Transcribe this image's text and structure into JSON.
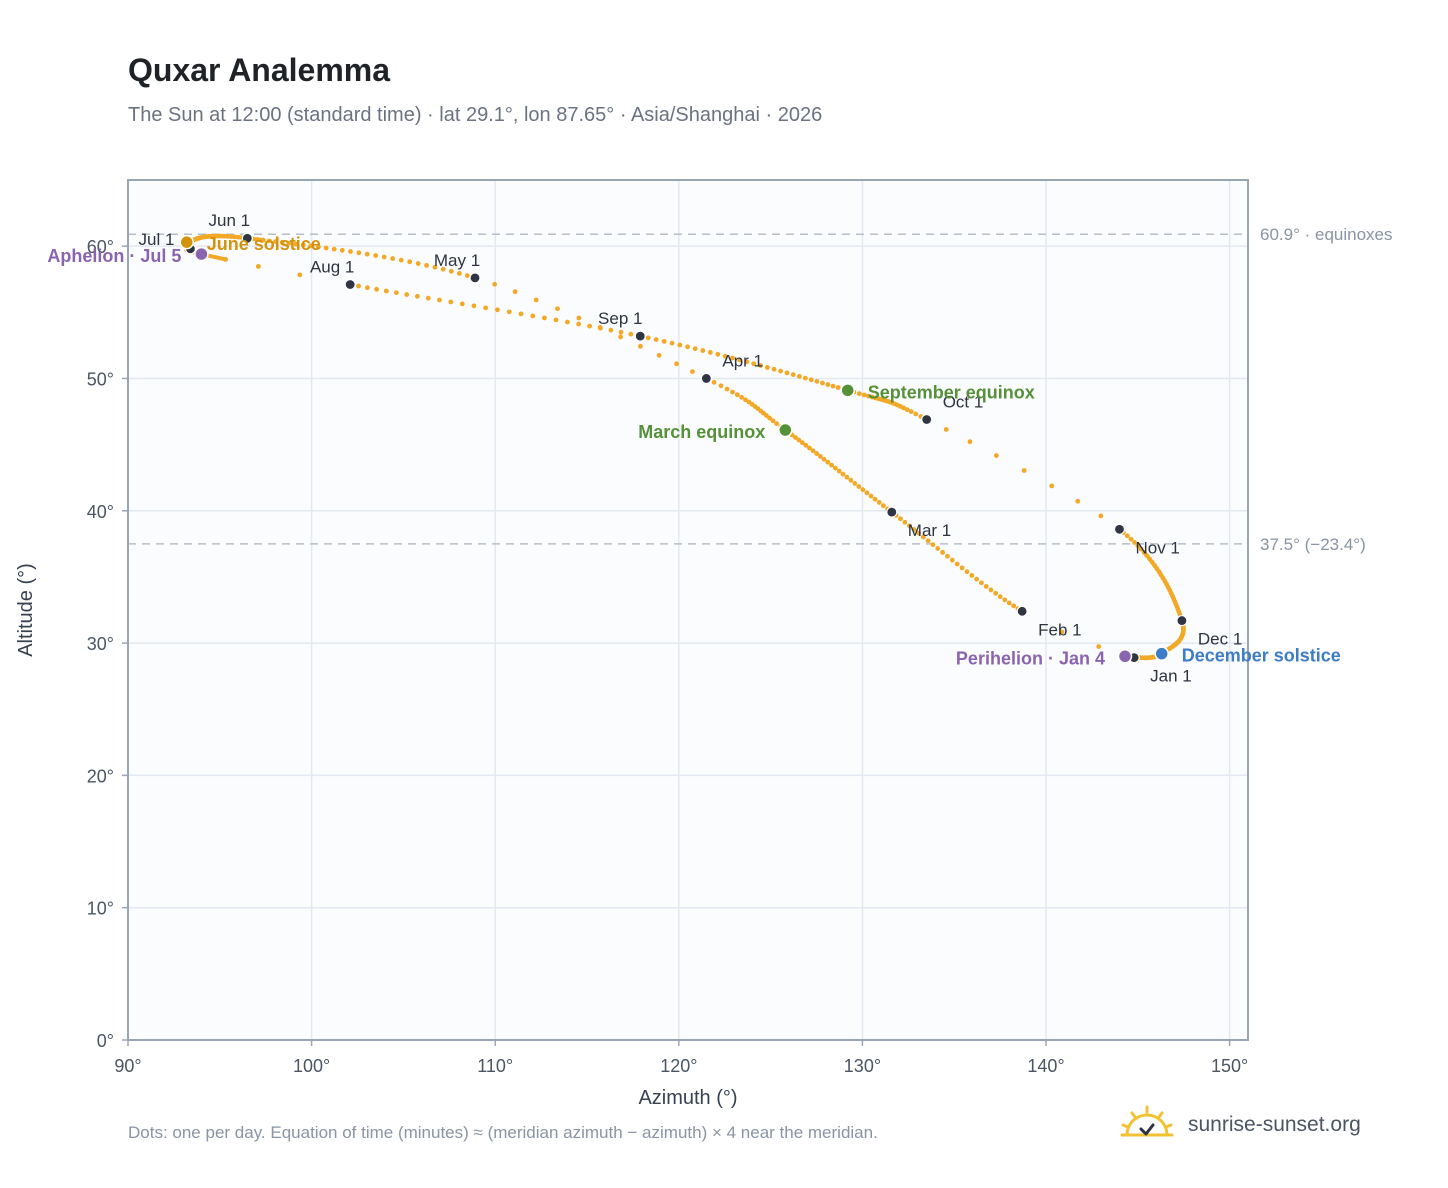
{
  "header": {
    "title": "Quxar Analemma",
    "subtitle": "The Sun at 12:00 (standard time) · lat 29.1°, lon 87.65° · Asia/Shanghai · 2026"
  },
  "footer": {
    "note": "Dots: one per day. Equation of time (minutes) ≈ (meridian azimuth − azimuth) × 4 near the meridian.",
    "brand": "sunrise-sunset.org",
    "brand_icon": "sun-check-icon"
  },
  "colors": {
    "curve": "#f3a826",
    "month_marker": "#2f3542",
    "solstice_june": "#d4930f",
    "solstice_december": "#3d7cc6",
    "equinox": "#559138",
    "apsis": "#8a64b0",
    "plot_bg": "#fbfcfe",
    "grid": "#e3e9f0",
    "frame": "#9aa5b4",
    "reference_line": "#b8bec8"
  },
  "chart_data": {
    "type": "scatter",
    "xlabel": "Azimuth (°)",
    "ylabel": "Altitude (°)",
    "xlim": [
      90,
      151
    ],
    "ylim": [
      0,
      65
    ],
    "x_ticks": [
      90,
      100,
      110,
      120,
      130,
      140,
      150
    ],
    "y_ticks": [
      0,
      10,
      20,
      30,
      40,
      50,
      60
    ],
    "x_tick_labels": [
      "90°",
      "100°",
      "110°",
      "120°",
      "130°",
      "140°",
      "150°"
    ],
    "y_tick_labels": [
      "0°",
      "10°",
      "20°",
      "30°",
      "40°",
      "50°",
      "60°"
    ],
    "grid": true,
    "legend": "none",
    "curve_key_points": [
      {
        "date": "Jan 1",
        "x": 144.8,
        "y": 28.9
      },
      {
        "date": "Jan 4",
        "x": 144.3,
        "y": 29.0
      },
      {
        "date": "Feb 1",
        "x": 138.7,
        "y": 32.4
      },
      {
        "date": "Mar 1",
        "x": 131.6,
        "y": 39.9
      },
      {
        "date": "Mar 20",
        "x": 125.8,
        "y": 46.1
      },
      {
        "date": "Apr 1",
        "x": 121.5,
        "y": 50.0
      },
      {
        "date": "May 1",
        "x": 108.9,
        "y": 57.6
      },
      {
        "date": "Jun 1",
        "x": 96.5,
        "y": 60.6
      },
      {
        "date": "Jun 21",
        "x": 93.2,
        "y": 60.3
      },
      {
        "date": "Jul 1",
        "x": 93.4,
        "y": 59.8
      },
      {
        "date": "Jul 5",
        "x": 94.0,
        "y": 59.4
      },
      {
        "date": "Aug 1",
        "x": 102.1,
        "y": 57.1
      },
      {
        "date": "Sep 1",
        "x": 117.9,
        "y": 53.2
      },
      {
        "date": "Sep 23",
        "x": 129.2,
        "y": 49.1
      },
      {
        "date": "Oct 1",
        "x": 133.5,
        "y": 46.9
      },
      {
        "date": "Nov 1",
        "x": 144.0,
        "y": 38.6
      },
      {
        "date": "Dec 1",
        "x": 147.4,
        "y": 31.7
      },
      {
        "date": "Dec 21",
        "x": 146.3,
        "y": 29.2
      },
      {
        "date": "Jan 1",
        "x": 144.8,
        "y": 28.9
      }
    ],
    "month_markers": [
      {
        "label": "Jan 1",
        "x": 144.8,
        "y": 28.9
      },
      {
        "label": "Feb 1",
        "x": 138.7,
        "y": 32.4
      },
      {
        "label": "Mar 1",
        "x": 131.6,
        "y": 39.9
      },
      {
        "label": "Apr 1",
        "x": 121.5,
        "y": 50.0
      },
      {
        "label": "May 1",
        "x": 108.9,
        "y": 57.6
      },
      {
        "label": "Jun 1",
        "x": 96.5,
        "y": 60.6
      },
      {
        "label": "Jul 1",
        "x": 93.4,
        "y": 59.8
      },
      {
        "label": "Aug 1",
        "x": 102.1,
        "y": 57.1
      },
      {
        "label": "Sep 1",
        "x": 117.9,
        "y": 53.2
      },
      {
        "label": "Oct 1",
        "x": 133.5,
        "y": 46.9
      },
      {
        "label": "Nov 1",
        "x": 144.0,
        "y": 38.6
      },
      {
        "label": "Dec 1",
        "x": 147.4,
        "y": 31.7
      }
    ],
    "annotations": [
      {
        "label": "June solstice",
        "x": 93.2,
        "y": 60.3,
        "kind": "solstice_june"
      },
      {
        "label": "December solstice",
        "x": 146.3,
        "y": 29.2,
        "kind": "solstice_december"
      },
      {
        "label": "March equinox",
        "x": 125.8,
        "y": 46.1,
        "kind": "equinox"
      },
      {
        "label": "September equinox",
        "x": 129.2,
        "y": 49.1,
        "kind": "equinox"
      },
      {
        "label": "Aphelion · Jul 5",
        "x": 94.0,
        "y": 59.4,
        "kind": "apsis"
      },
      {
        "label": "Perihelion · Jan 4",
        "x": 144.3,
        "y": 29.0,
        "kind": "apsis"
      }
    ],
    "reference_lines": [
      {
        "y": 60.9,
        "label": "60.9° · equinoxes"
      },
      {
        "y": 37.5,
        "label": "37.5° (−23.4°)"
      }
    ]
  }
}
